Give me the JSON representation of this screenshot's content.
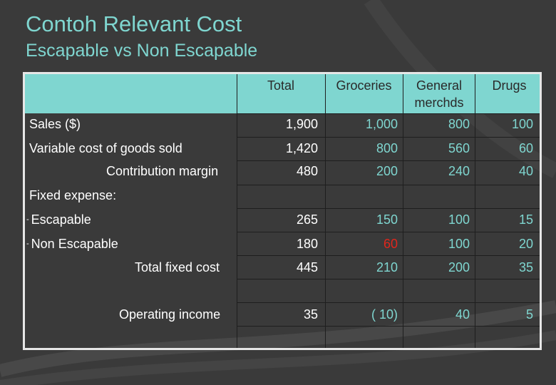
{
  "slide": {
    "title": "Contoh Relevant Cost",
    "subtitle": "Escapable vs Non Escapable"
  },
  "table": {
    "headers": {
      "total": "Total",
      "groceries": "Groceries",
      "general": "General merchds",
      "drugs": "Drugs"
    },
    "rows": {
      "sales": {
        "label": "Sales ($)",
        "total": "1,900",
        "groceries": "1,000",
        "general": "800",
        "drugs": "100"
      },
      "vcogs": {
        "label": "Variable cost of goods sold",
        "total": "1,420",
        "groceries": "800",
        "general": "560",
        "drugs": "60"
      },
      "cm": {
        "label": "Contribution margin",
        "total": "480",
        "groceries": "200",
        "general": "240",
        "drugs": "40"
      },
      "fixed": {
        "label": "Fixed expense:"
      },
      "escapable": {
        "label": "Escapable",
        "total": "265",
        "groceries": "150",
        "general": "100",
        "drugs": "15"
      },
      "nonescapable": {
        "label": "Non Escapable",
        "total": "180",
        "groceries": "60",
        "general": "100",
        "drugs": "20"
      },
      "totalfixed": {
        "label": "Total fixed cost",
        "total": "445",
        "groceries": "210",
        "general": "200",
        "drugs": "35"
      },
      "opincome": {
        "label": "Operating income",
        "total": "35",
        "groceries": "( 10)",
        "general": "40",
        "drugs": "5"
      }
    },
    "bullet_dash": "-"
  },
  "colors": {
    "background": "#3a3a3a",
    "accent": "#7fd6d0",
    "highlight": "#e0261c"
  }
}
